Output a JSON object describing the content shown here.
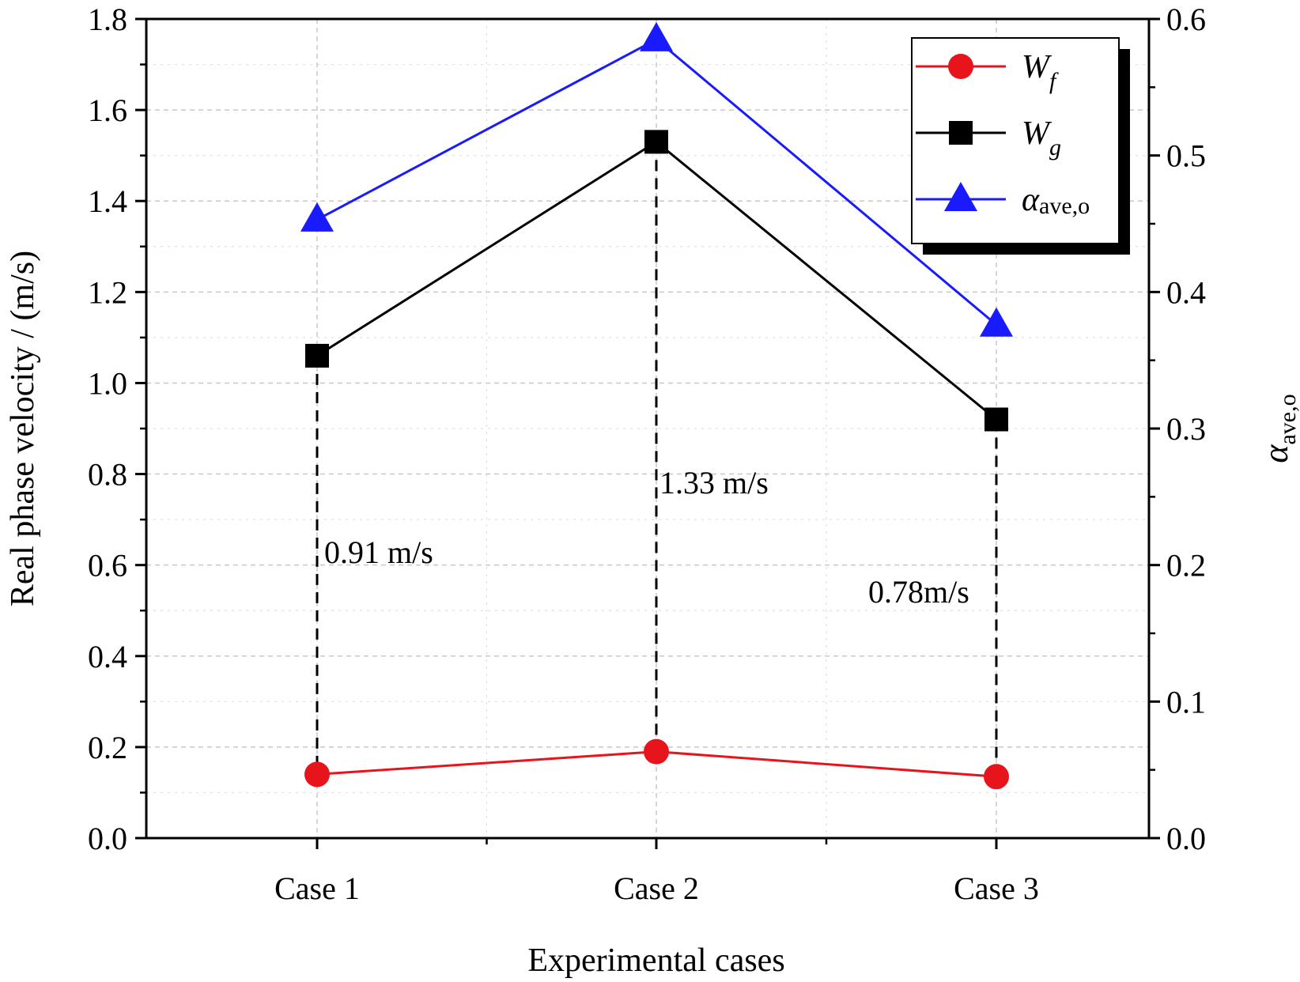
{
  "chart_data": {
    "type": "line",
    "xlabel": "Experimental cases",
    "ylabel": "Real  phase velocity / (m/s)",
    "y2label": {
      "symbol": "α",
      "sub": "ave,o"
    },
    "categories": [
      "Case 1",
      "Case 2",
      "Case 3"
    ],
    "ylim": [
      0,
      1.8
    ],
    "y2lim": [
      0,
      0.6
    ],
    "yticks": [
      "0.0",
      "0.2",
      "0.4",
      "0.6",
      "0.8",
      "1.0",
      "1.2",
      "1.4",
      "1.6",
      "1.8"
    ],
    "y2ticks": [
      "0.0",
      "0.1",
      "0.2",
      "0.3",
      "0.4",
      "0.5",
      "0.6"
    ],
    "grid": true,
    "legend_position": "top-right",
    "series": [
      {
        "name": "W",
        "sub": "f",
        "axis": "left",
        "color": "#e8141b",
        "marker": "circle",
        "values": [
          0.14,
          0.19,
          0.135
        ]
      },
      {
        "name": "W",
        "sub": "g",
        "axis": "left",
        "color": "#000000",
        "marker": "square",
        "values": [
          1.06,
          1.53,
          0.92
        ]
      },
      {
        "name": "α",
        "sub": "ave,o",
        "axis": "right",
        "color": "#1a1aff",
        "marker": "triangle",
        "values": [
          0.453,
          0.585,
          0.376
        ]
      }
    ],
    "annotations": [
      {
        "text": "0.91 m/s",
        "case": 0
      },
      {
        "text": "1.33 m/s",
        "case": 1
      },
      {
        "text": "0.78m/s",
        "case": 2
      }
    ]
  }
}
